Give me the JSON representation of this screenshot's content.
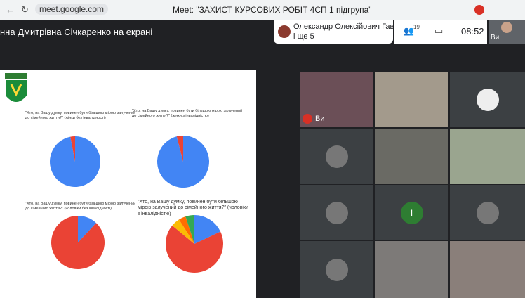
{
  "browser": {
    "url": "meet.google.com",
    "tab_title": "Meet: \"ЗАХИСТ КУРСОВИХ РОБІТ 4СП 1 підгрупа\""
  },
  "meet": {
    "presenter": "нна Дмитрівна Січкаренко на екрані",
    "speaker": "Олександр Олексійович Гаври...",
    "others": "і ще 5",
    "participants": "19",
    "time": "08:52",
    "self": "Ви",
    "tile_self": "Ви",
    "avatar_letter": "І"
  },
  "slide": {
    "charts": [
      {
        "title": "\"Хто, на Вашу думку, повинен бути більшою мірою залучений до сімейного життя?\" (жінки без інвалідності)",
        "values": [
          97,
          3
        ],
        "colors": [
          "#4285f4",
          "#ea4335"
        ]
      },
      {
        "title": "\"Хто, на Вашу думку, повинен бути більшою мірою залучений до сімейного життя?\" (жінки з інвалідністю)",
        "values": [
          96,
          4
        ],
        "colors": [
          "#4285f4",
          "#ea4335"
        ]
      },
      {
        "title": "\"Хто, на Вашу думку, повинен бути більшою мірою залучений до сімейного життя?\" (чоловіки без інвалідності)",
        "values": [
          12,
          88
        ],
        "colors": [
          "#4285f4",
          "#ea4335"
        ]
      },
      {
        "title": "\"Хто, на Вашу думку, повинен бути більшою мірою залучений до сімейного життя?\" (чоловіки з інвалідністю)",
        "values": [
          18,
          68,
          5,
          4,
          5
        ],
        "colors": [
          "#4285f4",
          "#ea4335",
          "#fbbc04",
          "#ff6d01",
          "#34a853"
        ]
      }
    ]
  }
}
